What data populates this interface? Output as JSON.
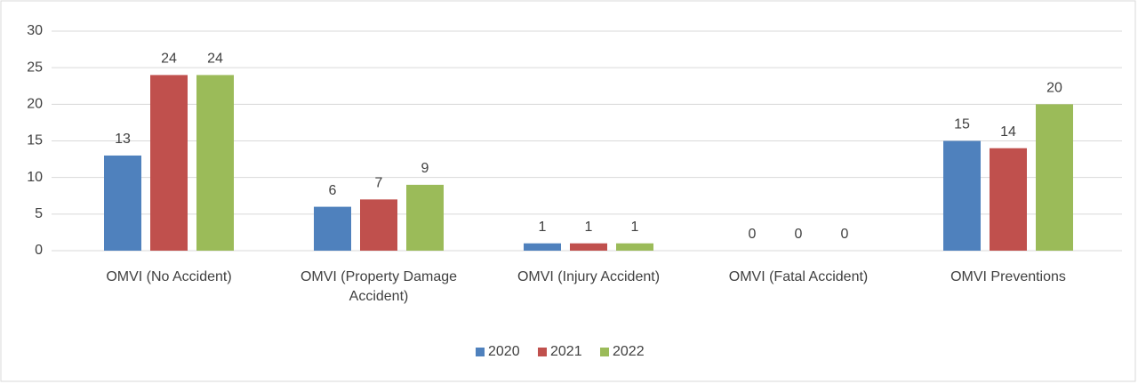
{
  "chart_data": {
    "type": "bar",
    "categories": [
      "OMVI (No Accident)",
      "OMVI  (Property Damage Accident)",
      "OMVI  (Injury Accident)",
      "OMVI (Fatal Accident)",
      "OMVI Preventions"
    ],
    "series": [
      {
        "name": "2020",
        "color": "#4f81bd",
        "values": [
          13,
          6,
          1,
          0,
          15
        ]
      },
      {
        "name": "2021",
        "color": "#c0504d",
        "values": [
          24,
          7,
          1,
          0,
          14
        ]
      },
      {
        "name": "2022",
        "color": "#9bbb59",
        "values": [
          24,
          9,
          1,
          0,
          20
        ]
      }
    ],
    "ylim": [
      0,
      30
    ],
    "yticks": [
      0,
      5,
      10,
      15,
      20,
      25,
      30
    ],
    "grid": true,
    "legend": "bottom"
  }
}
